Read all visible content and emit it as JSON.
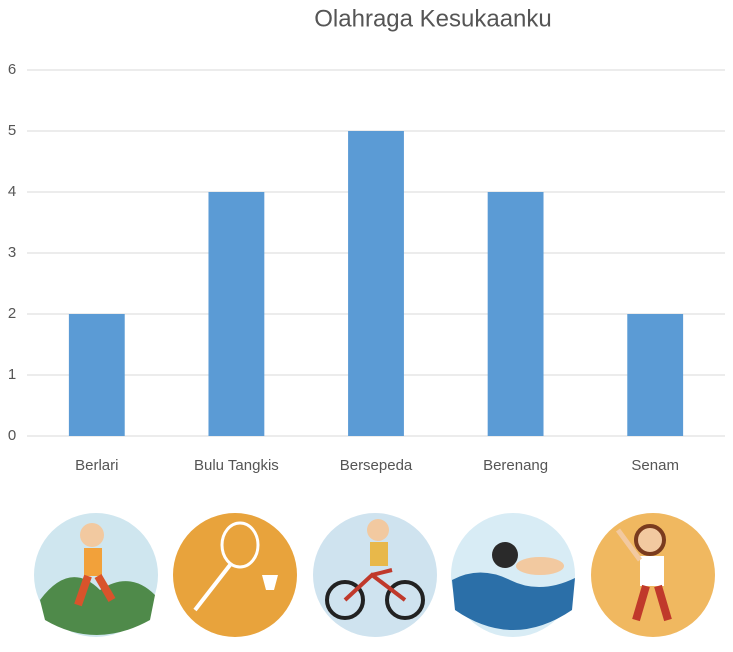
{
  "chart_data": {
    "type": "bar",
    "title": "Olahraga Kesukaanku",
    "categories": [
      "Berlari",
      "Bulu Tangkis",
      "Bersepeda",
      "Berenang",
      "Senam"
    ],
    "values": [
      2,
      4,
      5,
      4,
      2
    ],
    "color": "#5b9bd5",
    "ylim": [
      0,
      6
    ],
    "yticks": [
      0,
      1,
      2,
      3,
      4,
      5,
      6
    ],
    "grid": true
  }
}
